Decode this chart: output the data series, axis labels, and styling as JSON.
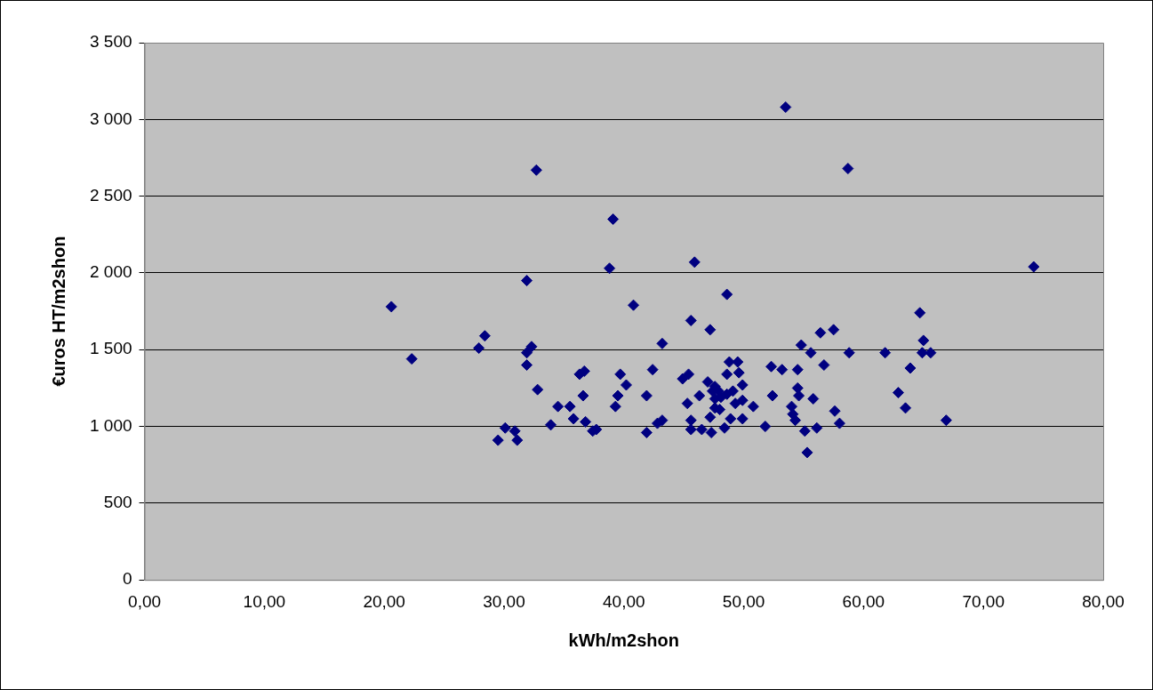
{
  "chart_data": {
    "type": "scatter",
    "xlabel": "kWh/m2shon",
    "ylabel": "€uros HT/m2shon",
    "xlim": [
      0,
      80
    ],
    "ylim": [
      0,
      3500
    ],
    "xticks": [
      {
        "value": 0,
        "label": "0,00"
      },
      {
        "value": 10,
        "label": "10,00"
      },
      {
        "value": 20,
        "label": "20,00"
      },
      {
        "value": 30,
        "label": "30,00"
      },
      {
        "value": 40,
        "label": "40,00"
      },
      {
        "value": 50,
        "label": "50,00"
      },
      {
        "value": 60,
        "label": "60,00"
      },
      {
        "value": 70,
        "label": "70,00"
      },
      {
        "value": 80,
        "label": "80,00"
      }
    ],
    "yticks": [
      0,
      500,
      {
        "value": 1000,
        "label": "1 000"
      },
      {
        "value": 1500,
        "label": "1 500"
      },
      {
        "value": 2000,
        "label": "2 000"
      },
      {
        "value": 2500,
        "label": "2 500"
      },
      {
        "value": 3000,
        "label": "3 000"
      },
      {
        "value": 3500,
        "label": "3 500"
      }
    ],
    "grid": "y",
    "legend": false,
    "marker": "diamond",
    "series": [
      {
        "color": "#000080",
        "x": [
          20.6,
          22.3,
          28.4,
          27.9,
          31.9,
          38.8,
          32.3,
          31.9,
          31.9,
          32.8,
          30.1,
          29.5,
          30.9,
          31.1,
          33.9,
          34.5,
          35.5,
          35.8,
          36.8,
          37.4,
          37.7,
          36.3,
          36.7,
          36.6,
          39.7,
          40.2,
          39.5,
          39.3,
          45.9,
          48.6,
          40.8,
          45.6,
          47.2,
          43.2,
          42.4,
          41.9,
          41.9,
          42.8,
          43.2,
          44.9,
          45.4,
          45.3,
          45.6,
          45.6,
          46.5,
          47.3,
          46.3,
          47.2,
          48.4,
          47.0,
          47.6,
          48.8,
          49.5,
          48.6,
          49.6,
          49.9,
          48.9,
          49.9,
          50.8,
          51.8,
          52.3,
          52.4,
          53.2,
          54.5,
          54.5,
          54.6,
          54.0,
          54.1,
          54.3,
          55.1,
          55.3,
          55.8,
          56.1,
          54.8,
          55.6,
          56.4,
          57.5,
          56.7,
          57.6,
          58.0,
          58.8,
          47.9,
          47.6,
          48.1,
          48.6,
          49.1,
          49.3,
          49.9,
          47.6,
          48.0,
          47.4,
          61.8,
          64.7,
          65.0,
          64.9,
          65.6,
          63.9,
          62.9,
          63.5,
          66.9,
          74.2,
          32.7,
          53.5,
          58.7,
          39.1
        ],
        "values": [
          1780,
          1440,
          1590,
          1510,
          1950,
          2030,
          1520,
          1480,
          1400,
          1240,
          990,
          910,
          970,
          910,
          1010,
          1130,
          1130,
          1050,
          1030,
          970,
          980,
          1340,
          1360,
          1200,
          1340,
          1270,
          1200,
          1130,
          2070,
          1860,
          1790,
          1690,
          1630,
          1540,
          1370,
          1200,
          960,
          1020,
          1040,
          1310,
          1340,
          1150,
          1040,
          980,
          980,
          960,
          1200,
          1060,
          990,
          1290,
          1260,
          1420,
          1420,
          1340,
          1350,
          1270,
          1050,
          1050,
          1130,
          1000,
          1390,
          1200,
          1370,
          1370,
          1250,
          1200,
          1130,
          1080,
          1040,
          970,
          830,
          1180,
          990,
          1530,
          1480,
          1610,
          1630,
          1400,
          1100,
          1020,
          1480,
          1230,
          1180,
          1190,
          1210,
          1230,
          1150,
          1170,
          1120,
          1110,
          1230,
          1480,
          1740,
          1560,
          1480,
          1480,
          1380,
          1220,
          1120,
          1040,
          2040,
          2670,
          3080,
          2680,
          2350
        ]
      }
    ]
  }
}
